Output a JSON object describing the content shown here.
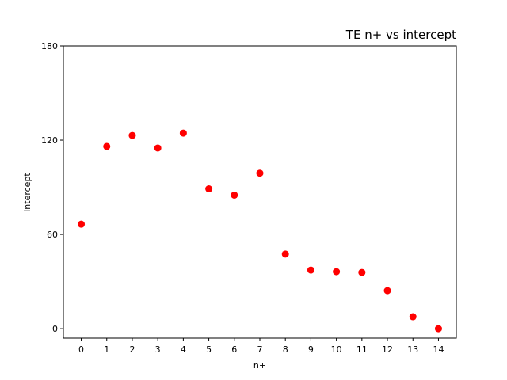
{
  "chart_data": {
    "type": "scatter",
    "title": "TE n+ vs intercept",
    "x_label": "n+",
    "y_label": "intercept",
    "x": [
      0,
      1,
      2,
      3,
      4,
      5,
      6,
      7,
      8,
      9,
      10,
      11,
      12,
      13,
      14
    ],
    "series": [
      {
        "color": "#ff0000",
        "values": [
          66.5,
          116,
          123,
          115,
          124.5,
          89,
          85,
          99,
          47.5,
          37.3,
          36.3,
          35.8,
          24.2,
          7.6,
          0
        ]
      }
    ],
    "xlim": [
      -0.7,
      14.7
    ],
    "ylim": [
      -6,
      180
    ],
    "xticks": [
      0,
      1,
      2,
      3,
      4,
      5,
      6,
      7,
      8,
      9,
      10,
      11,
      12,
      13,
      14
    ],
    "yticks": [
      0,
      60,
      120,
      180
    ],
    "grid": false
  }
}
